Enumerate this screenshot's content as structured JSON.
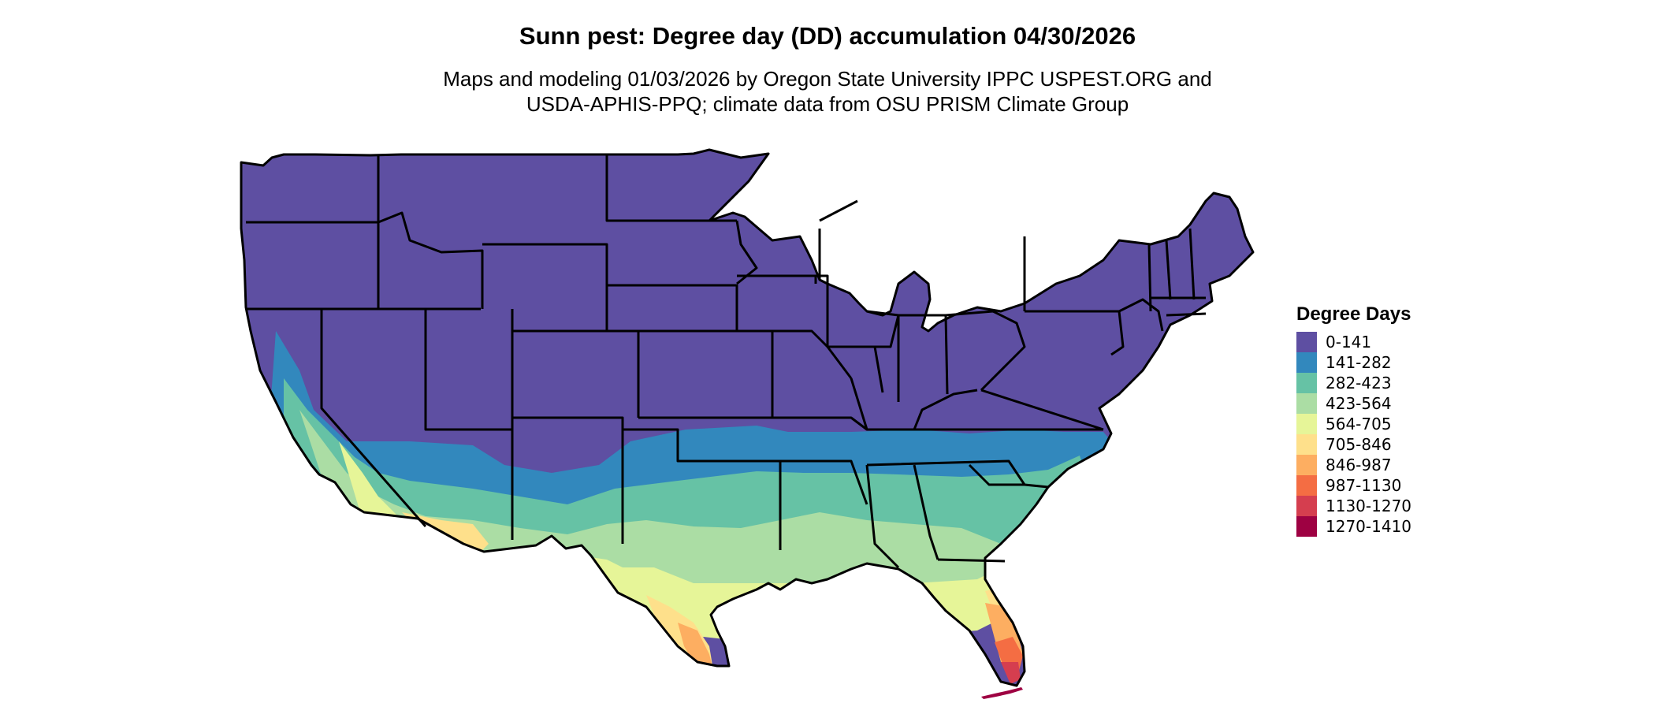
{
  "title": "Sunn pest: Degree day (DD) accumulation 04/30/2026",
  "subtitle_lines": [
    "Maps and modeling 01/03/2026 by Oregon State University IPPC USPEST.ORG and",
    "USDA-APHIS-PPQ; climate data from OSU PRISM Climate Group"
  ],
  "legend": {
    "title": "Degree Days",
    "items": [
      {
        "label": "0-141",
        "color": "#5e4fa2"
      },
      {
        "label": "141-282",
        "color": "#3288bd"
      },
      {
        "label": "282-423",
        "color": "#66c2a5"
      },
      {
        "label": "423-564",
        "color": "#abdda4"
      },
      {
        "label": "564-705",
        "color": "#e6f598"
      },
      {
        "label": "705-846",
        "color": "#fee08b"
      },
      {
        "label": "846-987",
        "color": "#fdae61"
      },
      {
        "label": "987-1130",
        "color": "#f46d43"
      },
      {
        "label": "1130-1270",
        "color": "#d53e4f"
      },
      {
        "label": "1270-1410",
        "color": "#9e0142"
      }
    ]
  }
}
